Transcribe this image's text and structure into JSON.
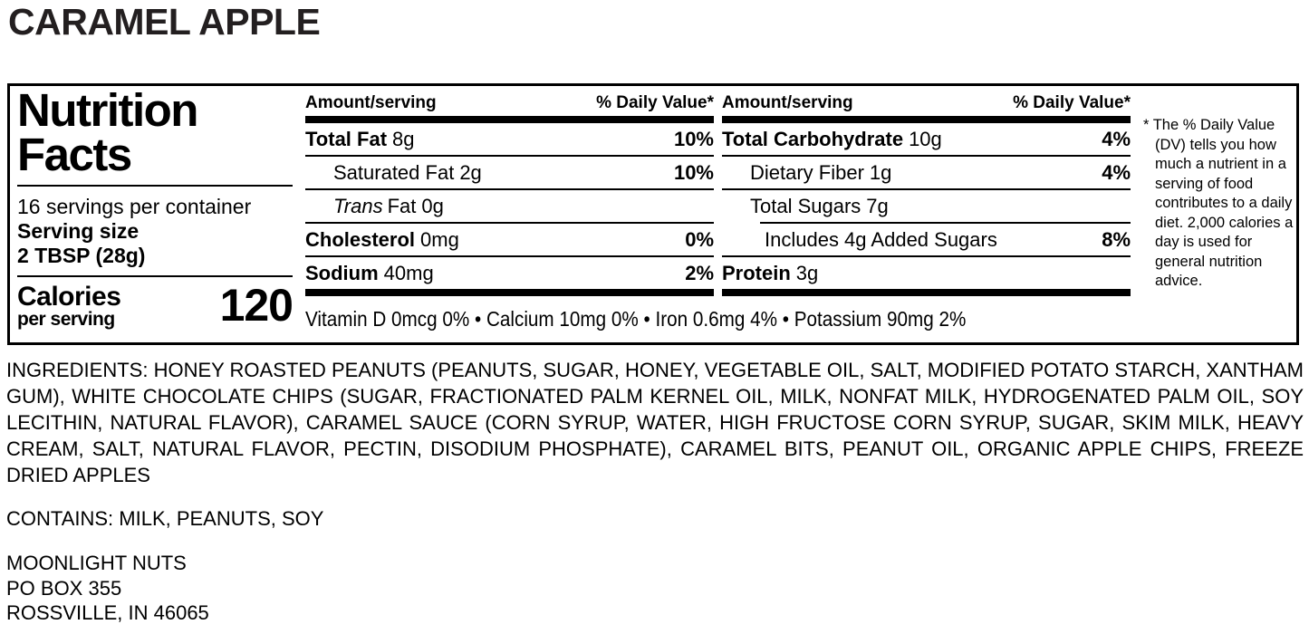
{
  "title": "CARAMEL APPLE",
  "label": {
    "heading": "Nutrition Facts",
    "servings_per_container": "16 servings per container",
    "serving_size_label": "Serving size",
    "serving_size_value": "2 TBSP (28g)",
    "calories_label": "Calories",
    "calories_sublabel": "per serving",
    "calories_value": "120",
    "columns": [
      {
        "amount_header": "Amount/serving",
        "dv_header": "% Daily Value*",
        "rows": [
          {
            "name": "Total Fat",
            "amount": "8g",
            "dv": "10%"
          },
          {
            "name": "Saturated Fat",
            "amount": "2g",
            "dv": "10%"
          },
          {
            "name_italic": "Trans",
            "name": "Fat",
            "amount": "0g",
            "dv": ""
          },
          {
            "name": "Cholesterol",
            "amount": "0mg",
            "dv": "0%"
          },
          {
            "name": "Sodium",
            "amount": "40mg",
            "dv": "2%"
          }
        ]
      },
      {
        "amount_header": "Amount/serving",
        "dv_header": "% Daily Value*",
        "rows": [
          {
            "name": "Total Carbohydrate",
            "amount": "10g",
            "dv": "4%"
          },
          {
            "name": "Dietary Fiber",
            "amount": "1g",
            "dv": "4%"
          },
          {
            "name": "Total Sugars",
            "amount": "7g",
            "dv": ""
          },
          {
            "name": "Includes 4g Added Sugars",
            "amount": "",
            "dv": "8%"
          },
          {
            "name": "Protein",
            "amount": "3g",
            "dv": ""
          }
        ]
      }
    ],
    "micronutrients": "Vitamin D 0mcg 0% • Calcium 10mg 0% • Iron 0.6mg 4% • Potassium 90mg 2%",
    "footnote_marker": "*",
    "footnote": "The % Daily Value (DV) tells you how much a nutrient in a serving of food contributes to a daily diet. 2,000 calories a day is used for general nutrition advice."
  },
  "ingredients": "INGREDIENTS: HONEY ROASTED PEANUTS (PEANUTS, SUGAR, HONEY, VEGETABLE OIL, SALT, MODIFIED POTATO STARCH, XANTHAM GUM), WHITE CHOCOLATE CHIPS (SUGAR, FRACTIONATED PALM KERNEL OIL, MILK, NONFAT MILK, HYDROGENATED PALM OIL, SOY LECITHIN, NATURAL FLAVOR), CARAMEL SAUCE (CORN SYRUP, WATER, HIGH FRUCTOSE CORN SYRUP, SUGAR, SKIM MILK, HEAVY CREAM, SALT, NATURAL FLAVOR, PECTIN, DISODIUM PHOSPHATE), CARAMEL BITS, PEANUT OIL, ORGANIC APPLE CHIPS, FREEZE DRIED APPLES",
  "contains": "CONTAINS: MILK, PEANUTS, SOY",
  "manufacturer": {
    "name": "MOONLIGHT NUTS",
    "po_box": "PO BOX 355",
    "city_state_zip": "ROSSVILLE, IN 46065"
  },
  "colors": {
    "text": "#000000",
    "title": "#231f20",
    "background": "#ffffff"
  }
}
